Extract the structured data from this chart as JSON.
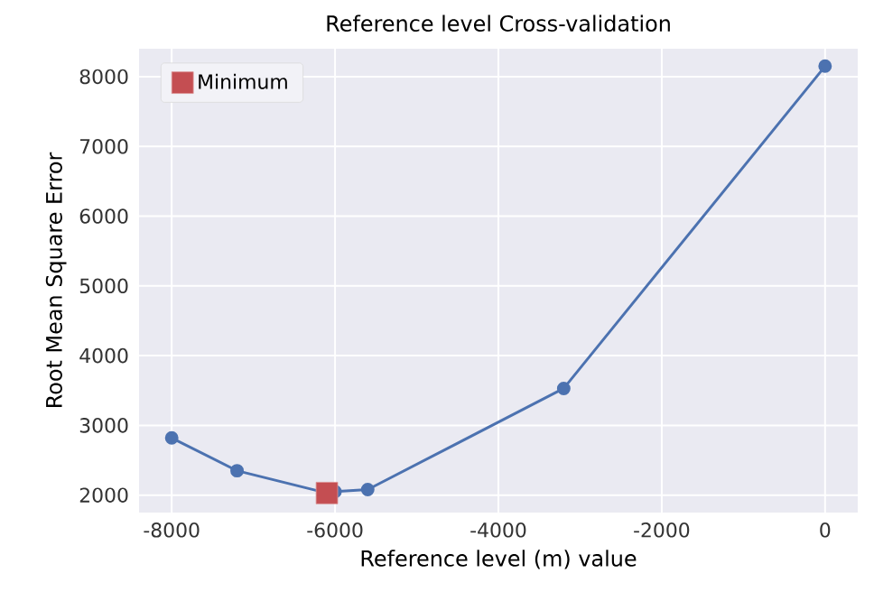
{
  "chart_data": {
    "type": "line",
    "title": "Reference level Cross-validation",
    "xlabel": "Reference level (m) value",
    "ylabel": "Root Mean Square Error",
    "series": [
      {
        "x": [
          -8000,
          -7200,
          -6100,
          -6000,
          -5600,
          -3200,
          0
        ],
        "values": [
          2820,
          2350,
          2030,
          2050,
          2080,
          3530,
          8150
        ],
        "color": "#4c72b0",
        "marker": "circle"
      },
      {
        "type": "scatter",
        "name": "Minimum",
        "x": [
          -6100
        ],
        "values": [
          2030
        ],
        "color": "#c44e52",
        "marker": "square"
      }
    ],
    "xlim": [
      -8400,
      400
    ],
    "xticks": [
      -8000,
      -6000,
      -4000,
      -2000,
      0
    ],
    "ylim": [
      1750,
      8400
    ],
    "yticks": [
      2000,
      3000,
      4000,
      5000,
      6000,
      7000,
      8000
    ],
    "grid": true,
    "legend": "top left"
  }
}
